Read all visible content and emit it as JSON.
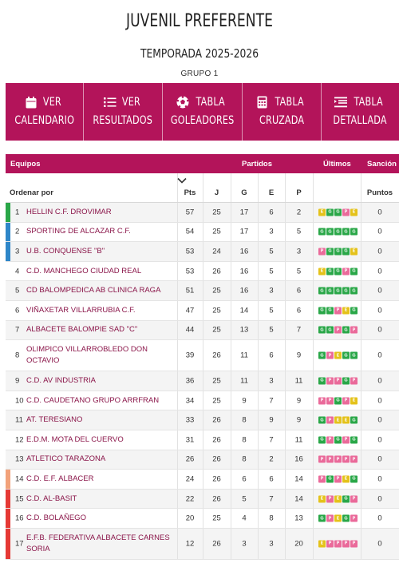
{
  "page": {
    "title": "JUVENIL PREFERENTE",
    "season": "TEMPORADA 2025-2026",
    "group": "GRUPO 1"
  },
  "nav": [
    {
      "line1": "VER",
      "line2": "CALENDARIO",
      "icon": "calendar-icon"
    },
    {
      "line1": "VER",
      "line2": "RESULTADOS",
      "icon": "list-icon"
    },
    {
      "line1": "TABLA",
      "line2": "GOLEADORES",
      "icon": "soccer-ball-icon"
    },
    {
      "line1": "TABLA",
      "line2": "CRUZADA",
      "icon": "calculator-icon"
    },
    {
      "line1": "TABLA",
      "line2": "DETALLADA",
      "icon": "list-detail-icon"
    }
  ],
  "table": {
    "header1": {
      "teams": "Equipos",
      "matches": "Partidos",
      "last": "Últimos",
      "sanction": "Sanción"
    },
    "header2": {
      "sort": "Ordenar por",
      "pts": "Pts",
      "j": "J",
      "g": "G",
      "e": "E",
      "p": "P",
      "points": "Puntos"
    },
    "colors": {
      "brand": "#b3145a",
      "win": "#2aa748",
      "draw": "#e4c21a",
      "loss": "#ea6a9a",
      "zone_green": "#2aa748",
      "zone_blue": "#2e86c8",
      "zone_orange": "#f2a27a",
      "zone_red": "#e53935"
    },
    "rows": [
      {
        "pos": "1",
        "team": "HELLIN C.F. DROVIMAR",
        "pts": "57",
        "j": "25",
        "g": "17",
        "e": "6",
        "p": "2",
        "form": [
          "E",
          "G",
          "G",
          "P",
          "E"
        ],
        "sanction": "0",
        "zone": "green"
      },
      {
        "pos": "2",
        "team": "SPORTING DE ALCAZAR C.F.",
        "pts": "54",
        "j": "25",
        "g": "17",
        "e": "3",
        "p": "5",
        "form": [
          "G",
          "G",
          "G",
          "G",
          "G"
        ],
        "sanction": "0",
        "zone": "blue"
      },
      {
        "pos": "3",
        "team": "U.B. CONQUENSE \"B\"",
        "pts": "53",
        "j": "24",
        "g": "16",
        "e": "5",
        "p": "3",
        "form": [
          "P",
          "G",
          "G",
          "G",
          "E"
        ],
        "sanction": "0",
        "zone": "blue"
      },
      {
        "pos": "4",
        "team": "C.D. MANCHEGO CIUDAD REAL",
        "pts": "53",
        "j": "26",
        "g": "16",
        "e": "5",
        "p": "5",
        "form": [
          "E",
          "G",
          "G",
          "P",
          "G"
        ],
        "sanction": "0",
        "zone": ""
      },
      {
        "pos": "5",
        "team": "CD BALOMPEDICA AB CLINICA RAGA",
        "pts": "51",
        "j": "25",
        "g": "16",
        "e": "3",
        "p": "6",
        "form": [
          "G",
          "G",
          "G",
          "G",
          "G"
        ],
        "sanction": "0",
        "zone": ""
      },
      {
        "pos": "6",
        "team": "VIÑAXETAR VILLARRUBIA C.F.",
        "pts": "47",
        "j": "25",
        "g": "14",
        "e": "5",
        "p": "6",
        "form": [
          "G",
          "G",
          "P",
          "E",
          "G"
        ],
        "sanction": "0",
        "zone": ""
      },
      {
        "pos": "7",
        "team": "ALBACETE BALOMPIE SAD \"C\"",
        "pts": "44",
        "j": "25",
        "g": "13",
        "e": "5",
        "p": "7",
        "form": [
          "G",
          "G",
          "P",
          "G",
          "P"
        ],
        "sanction": "0",
        "zone": ""
      },
      {
        "pos": "8",
        "team": "OLIMPICO VILLARROBLEDO DON OCTAVIO",
        "pts": "39",
        "j": "26",
        "g": "11",
        "e": "6",
        "p": "9",
        "form": [
          "G",
          "P",
          "E",
          "G",
          "G"
        ],
        "sanction": "0",
        "zone": ""
      },
      {
        "pos": "9",
        "team": "C.D. AV INDUSTRIA",
        "pts": "36",
        "j": "25",
        "g": "11",
        "e": "3",
        "p": "11",
        "form": [
          "G",
          "P",
          "P",
          "G",
          "P"
        ],
        "sanction": "0",
        "zone": ""
      },
      {
        "pos": "10",
        "team": "C.D. CAUDETANO GRUPO ARRFRAN",
        "pts": "34",
        "j": "25",
        "g": "9",
        "e": "7",
        "p": "9",
        "form": [
          "P",
          "P",
          "G",
          "P",
          "E"
        ],
        "sanction": "0",
        "zone": ""
      },
      {
        "pos": "11",
        "team": "AT. TERESIANO",
        "pts": "33",
        "j": "26",
        "g": "8",
        "e": "9",
        "p": "9",
        "form": [
          "G",
          "P",
          "E",
          "E",
          "G"
        ],
        "sanction": "0",
        "zone": ""
      },
      {
        "pos": "12",
        "team": "E.D.M. MOTA DEL CUERVO",
        "pts": "31",
        "j": "26",
        "g": "8",
        "e": "7",
        "p": "11",
        "form": [
          "G",
          "P",
          "G",
          "P",
          "G"
        ],
        "sanction": "0",
        "zone": ""
      },
      {
        "pos": "13",
        "team": "ATLETICO TARAZONA",
        "pts": "26",
        "j": "26",
        "g": "8",
        "e": "2",
        "p": "16",
        "form": [
          "P",
          "P",
          "P",
          "P",
          "P"
        ],
        "sanction": "0",
        "zone": ""
      },
      {
        "pos": "14",
        "team": "C.D. E.F. ALBACER",
        "pts": "24",
        "j": "26",
        "g": "6",
        "e": "6",
        "p": "14",
        "form": [
          "P",
          "G",
          "P",
          "E",
          "G"
        ],
        "sanction": "0",
        "zone": "orange"
      },
      {
        "pos": "15",
        "team": "C.D. AL-BASIT",
        "pts": "22",
        "j": "26",
        "g": "5",
        "e": "7",
        "p": "14",
        "form": [
          "E",
          "P",
          "E",
          "G",
          "P"
        ],
        "sanction": "0",
        "zone": "red"
      },
      {
        "pos": "16",
        "team": "C.D. BOLAÑEGO",
        "pts": "20",
        "j": "25",
        "g": "4",
        "e": "8",
        "p": "13",
        "form": [
          "G",
          "P",
          "E",
          "G",
          "P"
        ],
        "sanction": "0",
        "zone": "red"
      },
      {
        "pos": "17",
        "team": "E.F.B. FEDERATIVA ALBACETE CARNES SORIA",
        "pts": "12",
        "j": "26",
        "g": "3",
        "e": "3",
        "p": "20",
        "form": [
          "E",
          "P",
          "P",
          "P",
          "P"
        ],
        "sanction": "0",
        "zone": "red"
      }
    ]
  }
}
